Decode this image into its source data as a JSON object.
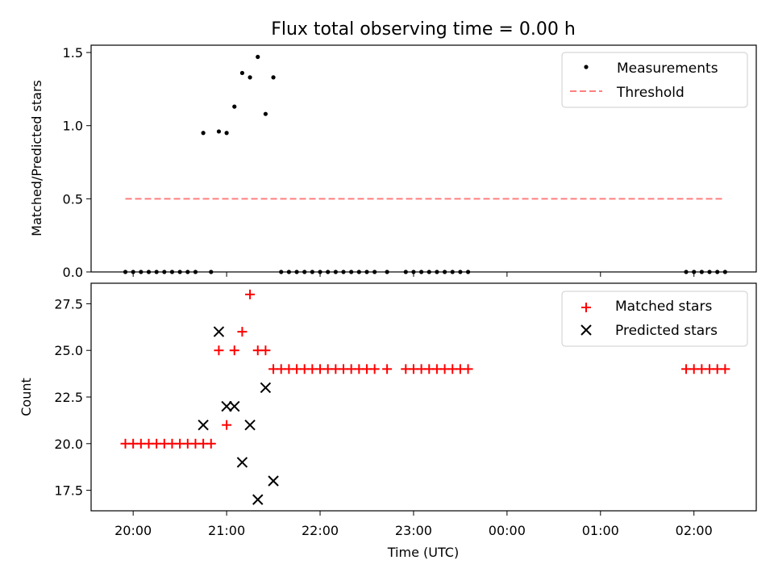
{
  "chart_data": [
    {
      "type": "scatter",
      "title": "Flux total observing time = 0.00 h",
      "xlabel": "",
      "ylabel": "Matched/Predicted stars",
      "ylim": [
        0,
        1.55
      ],
      "yticks": [
        "0.0",
        "0.5",
        "1.0",
        "1.5"
      ],
      "xticks": [
        "20:00",
        "21:00",
        "22:00",
        "23:00",
        "00:00",
        "01:00",
        "02:00"
      ],
      "xlim": [
        "19:33",
        "02:40"
      ],
      "legend": "top-right",
      "grid": false,
      "series": [
        {
          "name": "Measurements",
          "marker": "dot",
          "color": "#000000",
          "points": [
            [
              "19:55",
              0
            ],
            [
              "20:00",
              0
            ],
            [
              "20:05",
              0
            ],
            [
              "20:10",
              0
            ],
            [
              "20:15",
              0
            ],
            [
              "20:20",
              0
            ],
            [
              "20:25",
              0
            ],
            [
              "20:30",
              0
            ],
            [
              "20:35",
              0
            ],
            [
              "20:40",
              0
            ],
            [
              "20:45",
              0.95
            ],
            [
              "20:50",
              0
            ],
            [
              "20:55",
              0.96
            ],
            [
              "21:00",
              0.95
            ],
            [
              "21:05",
              1.13
            ],
            [
              "21:10",
              1.36
            ],
            [
              "21:15",
              1.33
            ],
            [
              "21:20",
              1.47
            ],
            [
              "21:25",
              1.08
            ],
            [
              "21:30",
              1.33
            ],
            [
              "21:35",
              0
            ],
            [
              "21:40",
              0
            ],
            [
              "21:45",
              0
            ],
            [
              "21:50",
              0
            ],
            [
              "21:55",
              0
            ],
            [
              "22:00",
              0
            ],
            [
              "22:05",
              0
            ],
            [
              "22:10",
              0
            ],
            [
              "22:15",
              0
            ],
            [
              "22:20",
              0
            ],
            [
              "22:25",
              0
            ],
            [
              "22:30",
              0
            ],
            [
              "22:35",
              0
            ],
            [
              "22:43",
              0
            ],
            [
              "22:55",
              0
            ],
            [
              "23:00",
              0
            ],
            [
              "23:05",
              0
            ],
            [
              "23:10",
              0
            ],
            [
              "23:15",
              0
            ],
            [
              "23:20",
              0
            ],
            [
              "23:25",
              0
            ],
            [
              "23:30",
              0
            ],
            [
              "23:35",
              0
            ],
            [
              "01:55",
              0
            ],
            [
              "02:00",
              0
            ],
            [
              "02:05",
              0
            ],
            [
              "02:10",
              0
            ],
            [
              "02:15",
              0
            ],
            [
              "02:20",
              0
            ]
          ]
        },
        {
          "name": "Threshold",
          "style": "dashed-line",
          "color": "#ff7f7f",
          "points": [
            [
              "19:55",
              0.5
            ],
            [
              "02:20",
              0.5
            ]
          ]
        }
      ]
    },
    {
      "type": "scatter",
      "title": "",
      "xlabel": "Time (UTC)",
      "ylabel": "Count",
      "ylim": [
        16.4,
        28.6
      ],
      "yticks": [
        "17.5",
        "20.0",
        "22.5",
        "25.0",
        "27.5"
      ],
      "xticks": [
        "20:00",
        "21:00",
        "22:00",
        "23:00",
        "00:00",
        "01:00",
        "02:00"
      ],
      "xlim": [
        "19:33",
        "02:40"
      ],
      "legend": "top-right",
      "grid": false,
      "series": [
        {
          "name": "Matched stars",
          "marker": "plus",
          "color": "#ff0000",
          "points": [
            [
              "19:55",
              20
            ],
            [
              "20:00",
              20
            ],
            [
              "20:05",
              20
            ],
            [
              "20:10",
              20
            ],
            [
              "20:15",
              20
            ],
            [
              "20:20",
              20
            ],
            [
              "20:25",
              20
            ],
            [
              "20:30",
              20
            ],
            [
              "20:35",
              20
            ],
            [
              "20:40",
              20
            ],
            [
              "20:45",
              20
            ],
            [
              "20:50",
              20
            ],
            [
              "20:55",
              25
            ],
            [
              "21:00",
              21
            ],
            [
              "21:05",
              25
            ],
            [
              "21:10",
              26
            ],
            [
              "21:15",
              28
            ],
            [
              "21:20",
              25
            ],
            [
              "21:25",
              25
            ],
            [
              "21:30",
              24
            ],
            [
              "21:35",
              24
            ],
            [
              "21:40",
              24
            ],
            [
              "21:45",
              24
            ],
            [
              "21:50",
              24
            ],
            [
              "21:55",
              24
            ],
            [
              "22:00",
              24
            ],
            [
              "22:05",
              24
            ],
            [
              "22:10",
              24
            ],
            [
              "22:15",
              24
            ],
            [
              "22:20",
              24
            ],
            [
              "22:25",
              24
            ],
            [
              "22:30",
              24
            ],
            [
              "22:35",
              24
            ],
            [
              "22:43",
              24
            ],
            [
              "22:55",
              24
            ],
            [
              "23:00",
              24
            ],
            [
              "23:05",
              24
            ],
            [
              "23:10",
              24
            ],
            [
              "23:15",
              24
            ],
            [
              "23:20",
              24
            ],
            [
              "23:25",
              24
            ],
            [
              "23:30",
              24
            ],
            [
              "23:35",
              24
            ],
            [
              "01:55",
              24
            ],
            [
              "02:00",
              24
            ],
            [
              "02:05",
              24
            ],
            [
              "02:10",
              24
            ],
            [
              "02:15",
              24
            ],
            [
              "02:20",
              24
            ]
          ]
        },
        {
          "name": "Predicted stars",
          "marker": "x",
          "color": "#000000",
          "points": [
            [
              "20:45",
              21
            ],
            [
              "20:55",
              26
            ],
            [
              "21:00",
              22
            ],
            [
              "21:05",
              22
            ],
            [
              "21:10",
              19
            ],
            [
              "21:15",
              21
            ],
            [
              "21:20",
              17
            ],
            [
              "21:25",
              23
            ],
            [
              "21:30",
              18
            ]
          ]
        }
      ]
    }
  ]
}
